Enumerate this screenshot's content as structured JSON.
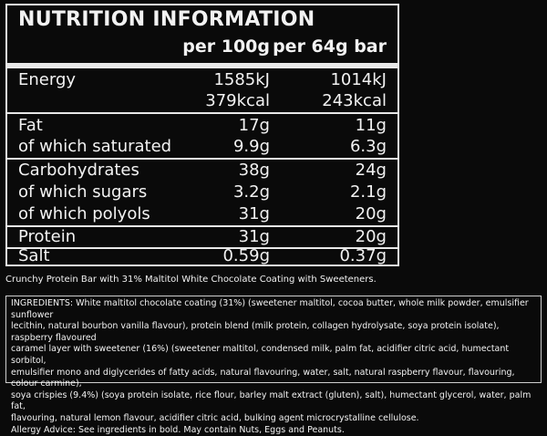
{
  "title": "NUTRITION INFORMATION",
  "columns": [
    "per 100g",
    "per 64g bar"
  ],
  "rows": [
    {
      "label": "Energy",
      "v1": "1585kJ",
      "v2": "1014kJ"
    },
    {
      "label": "",
      "v1": "379kcal",
      "v2": "243kcal"
    },
    {
      "label": "Fat",
      "v1": "17g",
      "v2": "11g"
    },
    {
      "label": "of which saturated",
      "v1": "9.9g",
      "v2": "6.3g"
    },
    {
      "label": "Carbohydrates",
      "v1": "38g",
      "v2": "24g"
    },
    {
      "label": "of which sugars",
      "v1": "3.2g",
      "v2": "2.1g"
    },
    {
      "label": "of which polyols",
      "v1": "31g",
      "v2": "20g"
    },
    {
      "label": "Protein",
      "v1": "31g",
      "v2": "20g"
    },
    {
      "label": "Salt",
      "v1": "0.59g",
      "v2": "0.37g"
    }
  ],
  "description": "Crunchy Protein Bar with 31% Maltitol White Chocolate Coating with Sweeteners.",
  "ingredients": "INGREDIENTS: White maltitol chocolate coating (31%) (sweetener maltitol, cocoa butter, whole milk powder, emulsifier sunflower\nlecithin, natural bourbon vanilla flavour), protein blend (milk protein, collagen hydrolysate, soya protein isolate), raspberry flavoured\ncaramel layer with sweetener (16%) (sweetener maltitol, condensed milk, palm fat, acidifier citric acid, humectant sorbitol,\nemulsifier mono and diglycerides of fatty acids, natural flavouring, water, salt, natural raspberry flavour, flavouring, colour carmine),\nsoya crispies (9.4%) (soya protein isolate, rice flour, barley malt extract (gluten), salt), humectant glycerol, water, palm fat,\nflavouring, natural lemon flavour, acidifier citric acid, bulking agent microcrystalline cellulose.",
  "allergy_advice": "Allergy Advice: See ingredients in bold.  May contain Nuts, Eggs and Peanuts."
}
